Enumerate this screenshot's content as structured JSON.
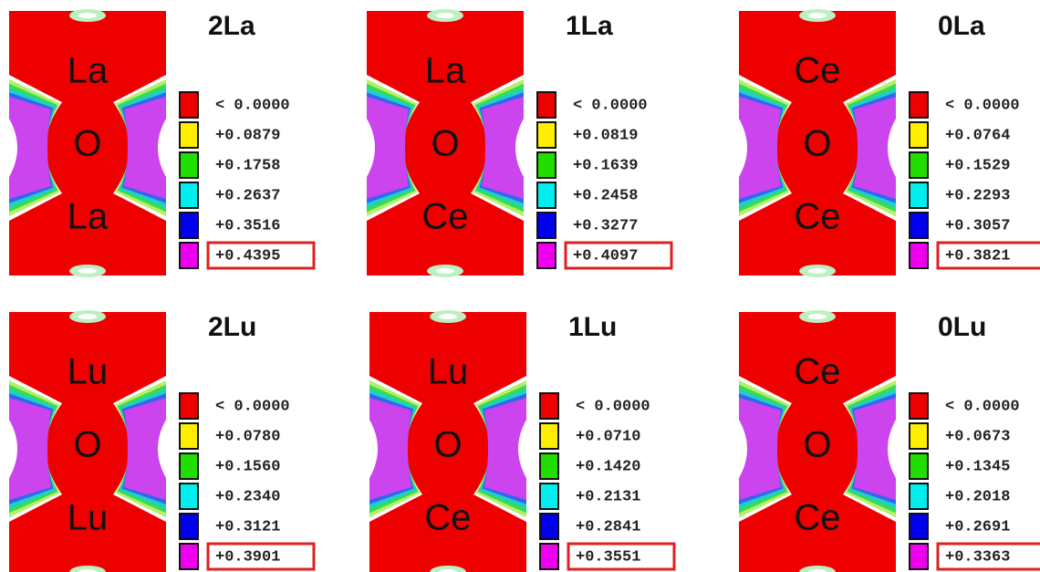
{
  "panels": [
    {
      "title": "2La",
      "atoms": [
        "La",
        "O",
        "La"
      ],
      "legend": [
        "< 0.0000",
        "+0.0879",
        "+0.1758",
        "+0.2637",
        "+0.3516",
        "+0.4395"
      ]
    },
    {
      "title": "1La",
      "atoms": [
        "La",
        "O",
        "Ce"
      ],
      "legend": [
        "< 0.0000",
        "+0.0819",
        "+0.1639",
        "+0.2458",
        "+0.3277",
        "+0.4097"
      ]
    },
    {
      "title": "0La",
      "atoms": [
        "Ce",
        "O",
        "Ce"
      ],
      "legend": [
        "< 0.0000",
        "+0.0764",
        "+0.1529",
        "+0.2293",
        "+0.3057",
        "+0.3821"
      ]
    },
    {
      "title": "2Lu",
      "atoms": [
        "Lu",
        "O",
        "Lu"
      ],
      "legend": [
        "< 0.0000",
        "+0.0780",
        "+0.1560",
        "+0.2340",
        "+0.3121",
        "+0.3901"
      ]
    },
    {
      "title": "1Lu",
      "atoms": [
        "Lu",
        "O",
        "Ce"
      ],
      "legend": [
        "< 0.0000",
        "+0.0710",
        "+0.1420",
        "+0.2131",
        "+0.2841",
        "+0.3551"
      ]
    },
    {
      "title": "0Lu",
      "atoms": [
        "Ce",
        "O",
        "Ce"
      ],
      "legend": [
        "< 0.0000",
        "+0.0673",
        "+0.1345",
        "+0.2018",
        "+0.2691",
        "+0.3363"
      ]
    }
  ]
}
